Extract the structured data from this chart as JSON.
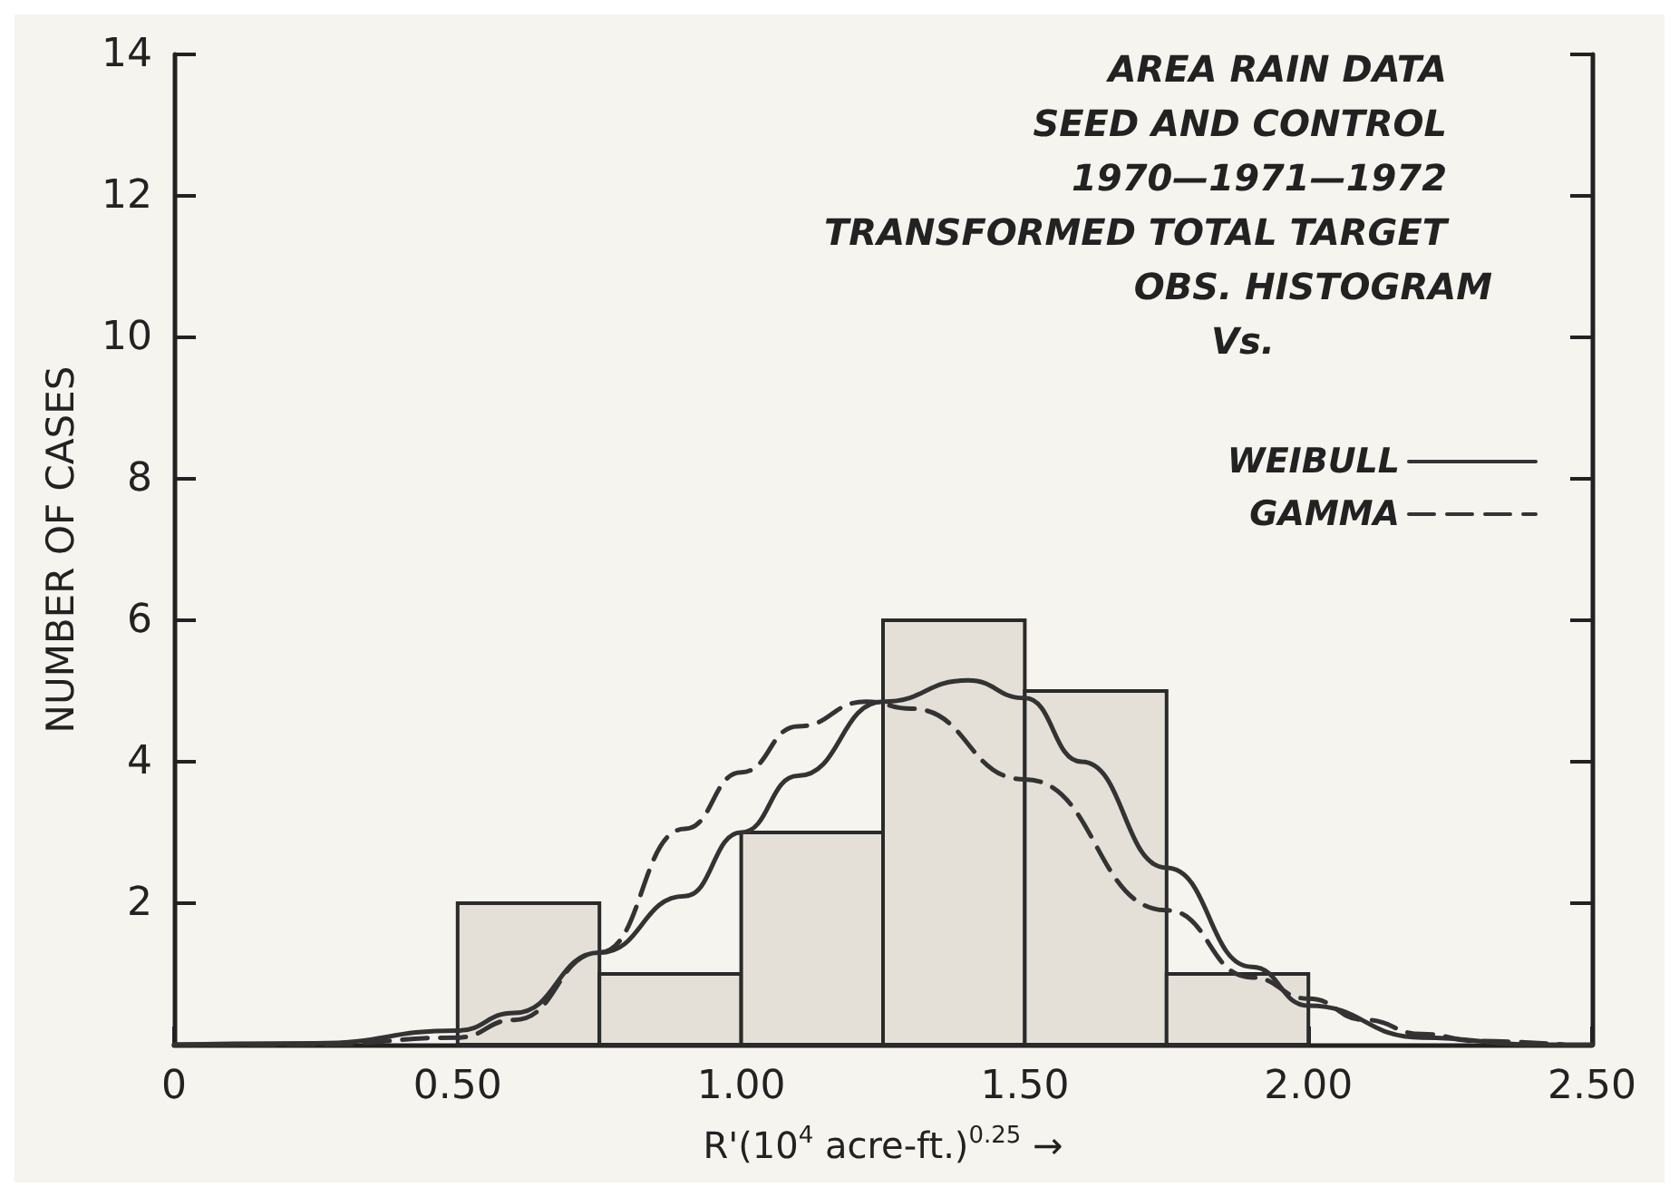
{
  "chart_data": {
    "type": "histogram",
    "title": "AREA RAIN DATA\nSEED AND CONTROL\n1970—1971—1972\nTRANSFORMED TOTAL TARGET",
    "annotations": [
      "OBS. HISTOGRAM",
      "Vs."
    ],
    "xlabel": "R'(10$^{4}$ acre-ft.)$^{0.25}$ →",
    "ylabel": "NUMBER OF CASES",
    "bins": [
      0.5,
      0.75,
      1.0,
      1.25,
      1.5,
      1.75,
      2.0
    ],
    "values": [
      2,
      1,
      3,
      6,
      5,
      1
    ],
    "color": "#e4e0d8",
    "series": [
      {
        "type": "line",
        "name": "WEIBULL",
        "color": "#333333",
        "line_style": "solid",
        "x": [
          0,
          0.25,
          0.5,
          0.6,
          0.75,
          0.9,
          1.0,
          1.1,
          1.25,
          1.4,
          1.5,
          1.6,
          1.75,
          1.9,
          2.0,
          2.2,
          2.4,
          2.5
        ],
        "values": [
          0,
          0.02,
          0.2,
          0.45,
          1.3,
          2.1,
          3.0,
          3.8,
          4.85,
          5.15,
          4.9,
          4.0,
          2.5,
          1.1,
          0.55,
          0.1,
          0,
          0
        ]
      },
      {
        "type": "line",
        "name": "GAMMA",
        "color": "#333333",
        "line_style": "dashed",
        "x": [
          0,
          0.25,
          0.5,
          0.6,
          0.75,
          0.9,
          1.0,
          1.1,
          1.22,
          1.3,
          1.5,
          1.75,
          1.9,
          2.0,
          2.1,
          2.2,
          2.3,
          2.45
        ],
        "values": [
          0,
          0,
          0.1,
          0.35,
          1.3,
          3.05,
          3.85,
          4.5,
          4.85,
          4.75,
          3.75,
          1.9,
          0.95,
          0.65,
          0.35,
          0.15,
          0.05,
          0
        ]
      }
    ],
    "xlim": [
      0,
      2.5
    ],
    "xticks": [
      0,
      {
        "value": 0.5,
        "label": "0.50"
      },
      {
        "value": 1,
        "label": "1.00"
      },
      {
        "value": 1.5,
        "label": "1.50"
      },
      {
        "value": 2,
        "label": "2.00"
      },
      {
        "value": 2.5,
        "label": "2.50"
      }
    ],
    "ylim": [
      0,
      14
    ],
    "yticks": [
      2,
      4,
      6,
      8,
      10,
      12,
      14
    ],
    "grid": false,
    "legend": "top right",
    "marker": "none"
  }
}
